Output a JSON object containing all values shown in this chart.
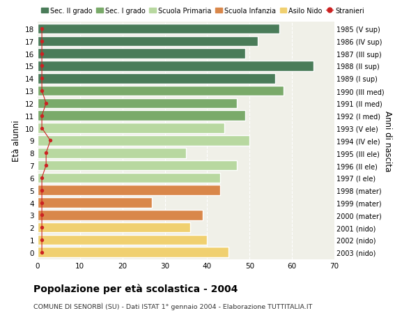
{
  "ages": [
    18,
    17,
    16,
    15,
    14,
    13,
    12,
    11,
    10,
    9,
    8,
    7,
    6,
    5,
    4,
    3,
    2,
    1,
    0
  ],
  "values": [
    57,
    52,
    49,
    65,
    56,
    58,
    47,
    49,
    44,
    50,
    35,
    47,
    43,
    43,
    27,
    39,
    36,
    40,
    45
  ],
  "stranieri": [
    1,
    1,
    1,
    1,
    1,
    1,
    2,
    1,
    1,
    3,
    2,
    2,
    1,
    1,
    1,
    1,
    1,
    1,
    1
  ],
  "right_labels": [
    "1985 (V sup)",
    "1986 (IV sup)",
    "1987 (III sup)",
    "1988 (II sup)",
    "1989 (I sup)",
    "1990 (III med)",
    "1991 (II med)",
    "1992 (I med)",
    "1993 (V ele)",
    "1994 (IV ele)",
    "1995 (III ele)",
    "1996 (II ele)",
    "1997 (I ele)",
    "1998 (mater)",
    "1999 (mater)",
    "2000 (mater)",
    "2001 (nido)",
    "2002 (nido)",
    "2003 (nido)"
  ],
  "bar_colors": [
    "#4a7c59",
    "#4a7c59",
    "#4a7c59",
    "#4a7c59",
    "#4a7c59",
    "#7aaa6a",
    "#7aaa6a",
    "#7aaa6a",
    "#b8d8a0",
    "#b8d8a0",
    "#b8d8a0",
    "#b8d8a0",
    "#b8d8a0",
    "#d9874a",
    "#d9874a",
    "#d9874a",
    "#f0d070",
    "#f0d070",
    "#f0d070"
  ],
  "legend_labels": [
    "Sec. II grado",
    "Sec. I grado",
    "Scuola Primaria",
    "Scuola Infanzia",
    "Asilo Nido",
    "Stranieri"
  ],
  "legend_colors": [
    "#4a7c59",
    "#7aaa6a",
    "#b8d8a0",
    "#d9874a",
    "#f0d070",
    "#cc2222"
  ],
  "title": "Popolazione per età scolastica - 2004",
  "subtitle": "COMUNE DI SENORBÌ (SU) - Dati ISTAT 1° gennaio 2004 - Elaborazione TUTTITALIA.IT",
  "ylabel": "Età alunni",
  "ylabel_right": "Anni di nascita",
  "xlim": [
    0,
    70
  ],
  "xticks": [
    0,
    10,
    20,
    30,
    40,
    50,
    60,
    70
  ],
  "bg_color": "#ffffff",
  "plot_bg_color": "#f0f0e8",
  "bar_height": 0.82,
  "stranieri_color": "#cc2222"
}
